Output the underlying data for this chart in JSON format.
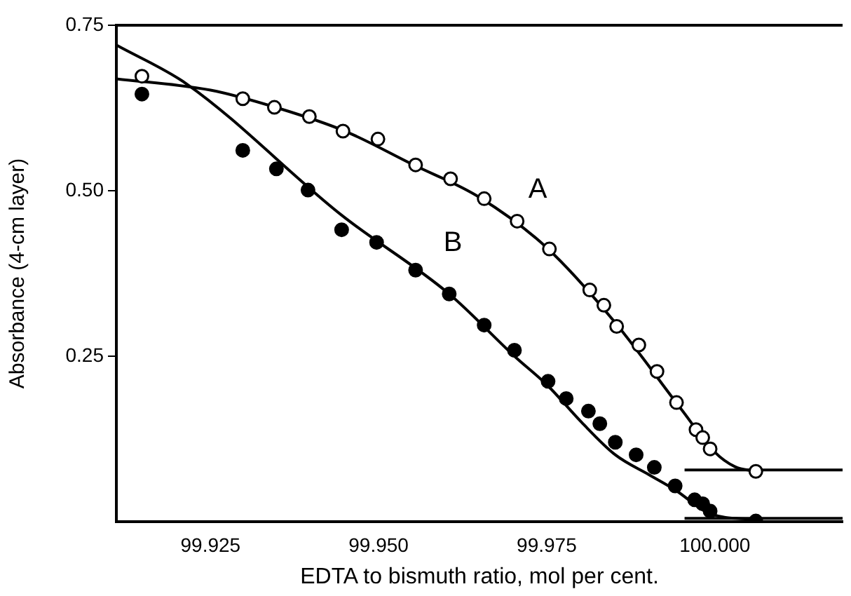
{
  "chart_data": {
    "type": "scatter",
    "xlabel": "EDTA to bismuth ratio, mol per cent.",
    "ylabel": "Absorbance (4-cm layer)",
    "xlim": [
      99.911,
      100.019
    ],
    "ylim": [
      0,
      0.75
    ],
    "xticks": [
      99.925,
      {
        "value": 99.95,
        "label": "99.950"
      },
      99.975,
      {
        "value": 100.0,
        "label": "100.000"
      }
    ],
    "yticks": [
      0.25,
      {
        "value": 0.5,
        "label": "0.50"
      },
      0.75
    ],
    "grid": false,
    "legend": false,
    "series": [
      {
        "name": "A",
        "marker": "circle",
        "color": "#ffffff",
        "x": [
          99.9148,
          99.9298,
          99.9345,
          99.9397,
          99.9447,
          99.9499,
          99.9555,
          99.9607,
          99.9657,
          99.9706,
          99.9754,
          99.9814,
          99.9835,
          99.9854,
          99.9887,
          99.9914,
          99.9943,
          99.9972,
          99.9982,
          99.9993,
          100.0061
        ],
        "values": [
          0.673,
          0.639,
          0.626,
          0.612,
          0.59,
          0.578,
          0.539,
          0.518,
          0.488,
          0.454,
          0.412,
          0.35,
          0.327,
          0.295,
          0.267,
          0.227,
          0.18,
          0.139,
          0.127,
          0.11,
          0.076
        ]
      },
      {
        "name": "B",
        "marker": "circle",
        "color": "#000000",
        "x": [
          99.9148,
          99.9298,
          99.9348,
          99.9395,
          99.9445,
          99.9497,
          99.9555,
          99.9605,
          99.9657,
          99.9702,
          99.9752,
          99.9779,
          99.9812,
          99.9829,
          99.9852,
          99.9883,
          99.991,
          99.9941,
          99.997,
          99.9982,
          99.9993,
          100.0061
        ],
        "values": [
          0.646,
          0.561,
          0.533,
          0.501,
          0.441,
          0.422,
          0.38,
          0.344,
          0.297,
          0.259,
          0.212,
          0.186,
          0.167,
          0.148,
          0.12,
          0.101,
          0.082,
          0.054,
          0.033,
          0.027,
          0.016,
          0.001
        ]
      },
      {
        "type": "line",
        "marker": "none",
        "color": "#000000",
        "x": [
          99.911,
          99.925,
          99.935,
          99.945,
          99.955,
          99.965,
          99.975,
          99.985,
          99.995,
          100.0,
          100.003,
          100.006
        ],
        "values": [
          0.669,
          0.652,
          0.625,
          0.59,
          0.54,
          0.49,
          0.414,
          0.303,
          0.17,
          0.105,
          0.083,
          0.076
        ]
      },
      {
        "type": "line",
        "marker": "none",
        "color": "#000000",
        "x": [
          99.911,
          99.9215,
          99.9445,
          99.9605,
          99.9702,
          99.9752,
          99.9802,
          99.9852,
          99.9902,
          99.9941,
          99.9993,
          100.006
        ],
        "values": [
          0.72,
          0.661,
          0.463,
          0.344,
          0.25,
          0.205,
          0.15,
          0.101,
          0.071,
          0.048,
          0.012,
          0.003
        ]
      },
      {
        "type": "line",
        "marker": "none",
        "color": "#000000",
        "x": [
          99.9955,
          100.019
        ],
        "values": [
          0.078,
          0.078
        ]
      },
      {
        "type": "line",
        "marker": "none",
        "color": "#000000",
        "x": [
          99.9955,
          100.019
        ],
        "values": [
          0.005,
          0.005
        ]
      }
    ]
  }
}
